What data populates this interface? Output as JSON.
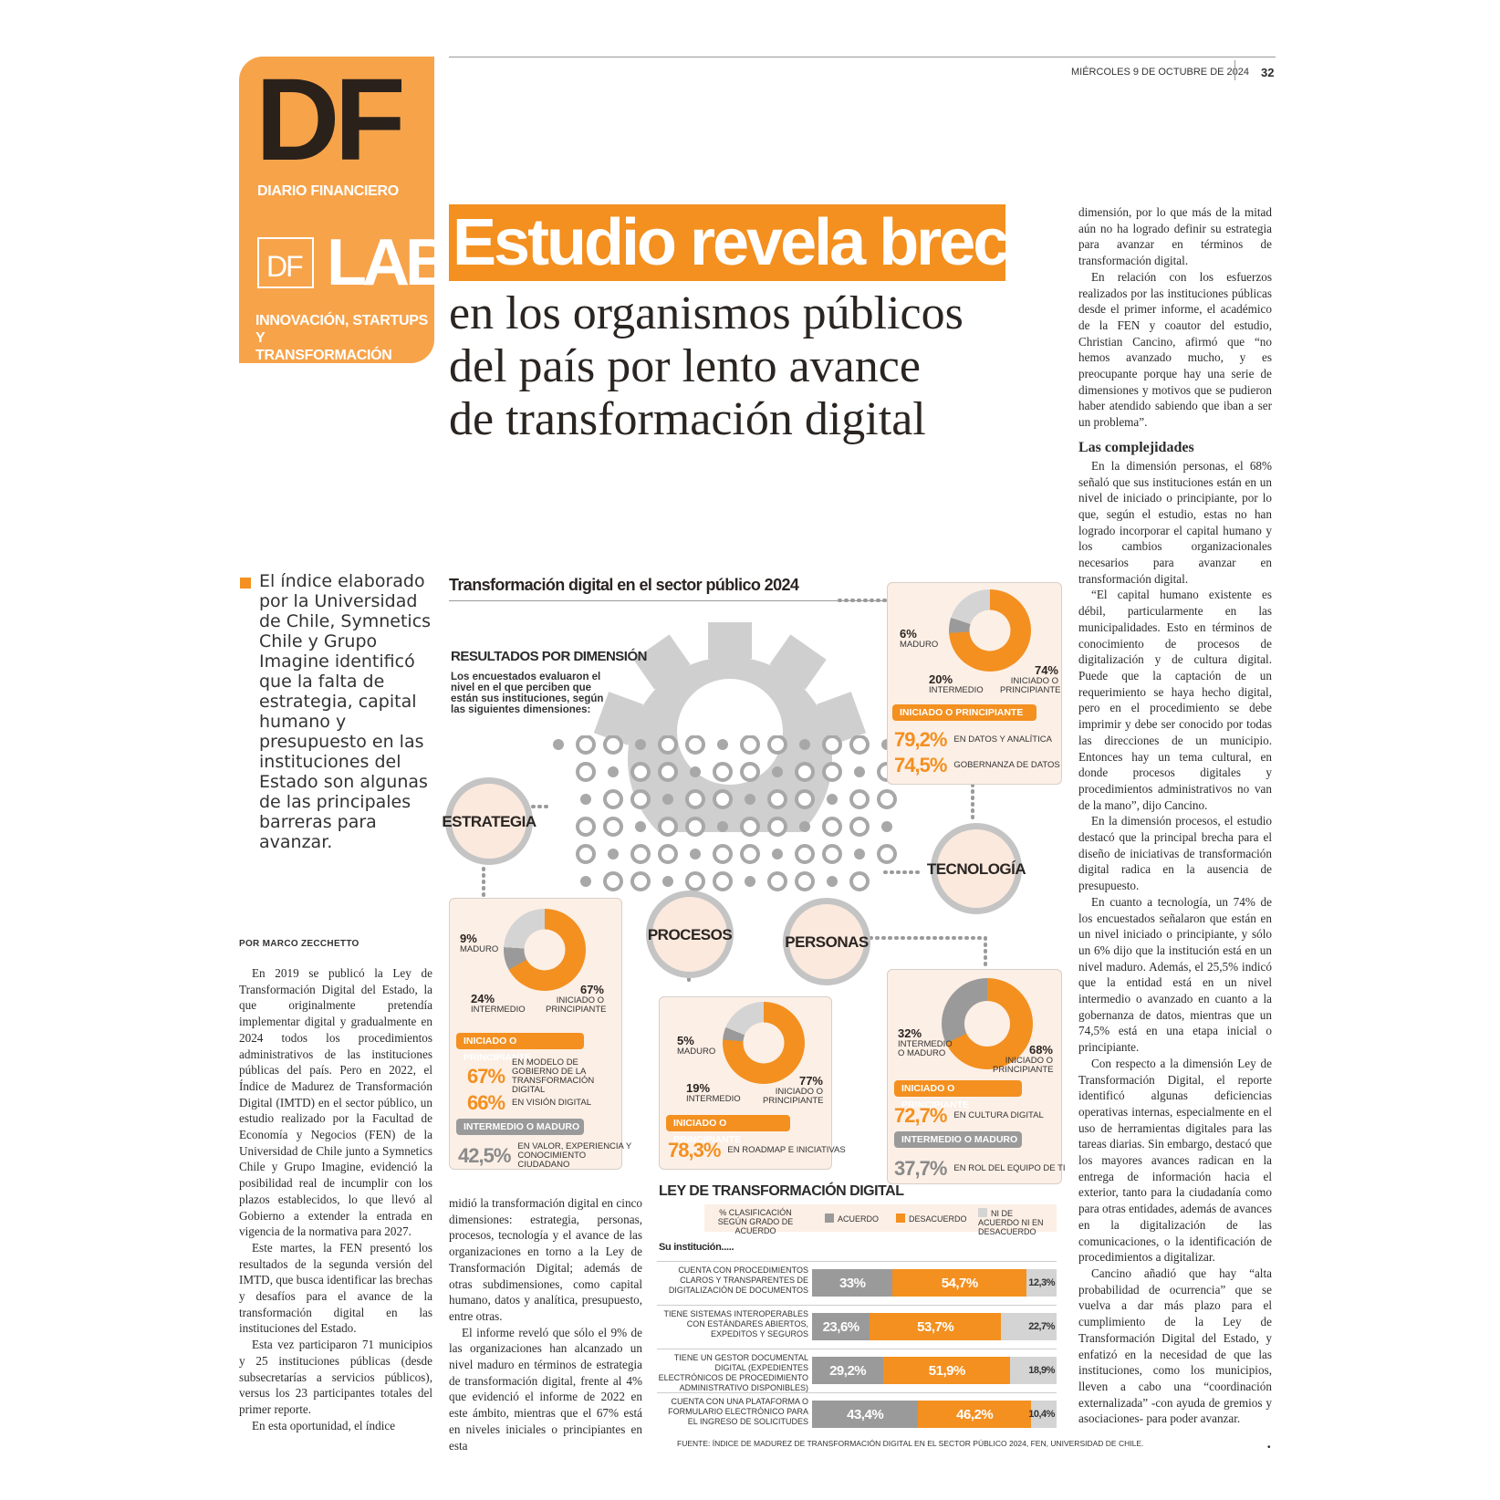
{
  "brand": {
    "logo": "DF",
    "name": "DIARIO FINANCIERO",
    "section_logo_df": "DF",
    "section_logo_lab": "LAB",
    "section_tagline": [
      "INNOVACIÓN, STARTUPS Y",
      "TRANSFORMACIÓN DIGITAL"
    ]
  },
  "page": {
    "date": "MIÉRCOLES 9 DE OCTUBRE DE 2024",
    "number": "32"
  },
  "headline": {
    "highlight": "Estudio revela brecha",
    "lines": [
      "en los organismos públicos",
      "del país por lento avance",
      "de transformación digital"
    ]
  },
  "lead": "El índice elaborado por la Universidad de Chile, Symnetics Chile y Grupo Imagine identificó que la falta de estrategia, capital humano y presupuesto en las instituciones del Estado son algunas de las principales barreras para avanzar.",
  "byline": "POR MARCO ZECCHETTO",
  "body": {
    "col1": [
      "En 2019 se publicó la Ley de Transformación Digital del Estado, la que originalmente pretendía implementar digital y gradualmente en 2024 todos los procedimientos administrativos de las instituciones públicas del país. Pero en 2022, el Índice de Madurez de Transformación Digital (IMTD) en el sector público, un estudio realizado por la Facultad de Economía y Negocios (FEN) de la Universidad de Chile junto a Symnetics Chile y Grupo Imagine, evidenció la posibilidad real de incumplir con los plazos establecidos, lo que llevó al Gobierno a extender la entrada en vigencia de la normativa para 2027.",
      "Este martes, la FEN presentó los resultados de la segunda versión del IMTD, que busca identificar las brechas y desafíos para el avance de la transformación digital en las instituciones del Estado.",
      "Esta vez participaron 71 municipios y 25 instituciones públicas (desde subsecretarías a servicios públicos), versus los 23 participantes totales del primer reporte.",
      "En esta oportunidad, el índice"
    ],
    "col2": [
      "midió la transformación digital en cinco dimensiones: estrategia, personas, procesos, tecnología y el avance de las organizaciones en torno a la Ley de Transformación Digital; además de otras subdimensiones, como capital humano, datos y analítica, presupuesto, entre otras.",
      "El informe reveló que sólo el 9% de las organizaciones han alcanzado un nivel maduro en términos de estrategia de transformación digital, frente al 4% que evidenció el informe de 2022 en este ámbito, mientras que el 67% está en niveles iniciales o principiantes en esta"
    ],
    "col3_a": [
      "dimensión, por lo que más de la mitad aún no ha logrado definir su estrategia para avanzar en términos de transformación digital.",
      "En relación con los esfuerzos realizados por las instituciones públicas desde el primer informe, el académico de la FEN y coautor del estudio, Christian Cancino, afirmó que “no hemos avanzado mucho, y es preocupante porque hay una serie de dimensiones y motivos que se pudieron haber atendido sabiendo que iban a ser un problema”."
    ],
    "col3_heading": "Las complejidades",
    "col3_b": [
      "En la dimensión personas, el 68% señaló que sus instituciones están en un nivel de iniciado o principiante, por lo que, según el estudio, estas no han logrado incorporar el capital humano y los cambios organizacionales necesarios para avanzar en transformación digital.",
      "“El capital humano existente es débil, particularmente en las municipalidades. Esto en términos de conocimiento de procesos de digitalización y de cultura digital. Puede que la captación de un requerimiento se haya hecho digital, pero en el procedimiento se debe imprimir y debe ser conocido por todas las direcciones de un municipio. Entonces hay un tema cultural, en donde procesos digitales y procedimientos administrativos no van de la mano”, dijo Cancino.",
      "En la dimensión procesos, el estudio destacó que la principal brecha para el diseño de iniciativas de transformación digital radica en la ausencia de presupuesto.",
      "En cuanto a tecnología, un 74% de los encuestados señalaron que están en un nivel iniciado o principiante, y sólo un 6% dijo que la institución está en un nivel maduro. Además, el 25,5% indicó que la entidad está en un nivel intermedio o avanzado en cuanto a la gobernanza de datos, mientras que un 74,5% está en una etapa inicial o principiante.",
      "Con respecto a la dimensión Ley de Transformación Digital, el reporte identificó algunas deficiencias operativas internas, especialmente en el uso de herramientas digitales para las tareas diarias. Sin embargo, destacó que los mayores avances radican en la entrega de información hacia el exterior, tanto para la ciudadanía como para otras entidades, además de avances en la digitalización de las comunicaciones, o la identificación de procedimientos a digitalizar.",
      "Cancino añadió que hay “alta probabilidad de ocurrencia” que se vuelva a dar más plazo para el cumplimiento de la Ley de Transformación Digital del Estado, y enfatizó en la necesidad de que las instituciones, como los municipios, lleven a cabo una “coordinación externalizada” -con ayuda de gremios y asociaciones- para poder avanzar."
    ],
    "end_mark": "•"
  },
  "infographic": {
    "title": "Transformación digital en el sector público 2024",
    "results_title": "RESULTADOS POR DIMENSIÓN",
    "results_sub": "Los encuestados evaluaron el nivel en el que perciben que están sus instituciones, según las siguientes dimensiones:",
    "colors": {
      "orange": "#f39020",
      "gray": "#9a9a9a",
      "light_gray": "#d4d4d4",
      "panel": "#fcefe6"
    },
    "dimensions": {
      "estrategia": {
        "label": "ESTRATEGIA",
        "maduro": "9%",
        "maduro_label": "MADURO",
        "intermedio": "24%",
        "intermedio_label": "INTERMEDIO",
        "iniciado": "67%",
        "iniciado_label": "INICIADO O PRINCIPIANTE",
        "pill1": "INICIADO O PRINCIPIANTE",
        "stats1": [
          {
            "value": "67%",
            "text": "EN MODELO DE GOBIERNO DE LA TRANSFORMACIÓN DIGITAL"
          },
          {
            "value": "66%",
            "text": "EN VISIÓN DIGITAL"
          }
        ],
        "pill2": "INTERMEDIO O MADURO",
        "stats2": [
          {
            "value": "42,5%",
            "text": "EN VALOR, EXPERIENCIA Y CONOCIMIENTO CIUDADANO"
          }
        ]
      },
      "procesos": {
        "label": "PROCESOS",
        "maduro": "5%",
        "maduro_label": "MADURO",
        "intermedio": "19%",
        "intermedio_label": "INTERMEDIO",
        "iniciado": "77%",
        "iniciado_label": "INICIADO O PRINCIPIANTE",
        "pill1": "INICIADO O PRINCIPIANTE",
        "stats1": [
          {
            "value": "78,3%",
            "text": "EN ROADMAP E INICIATIVAS"
          }
        ]
      },
      "personas": {
        "label": "PERSONAS",
        "maduro": "32%",
        "maduro_label": "INTERMEDIO O MADURO",
        "iniciado": "68%",
        "iniciado_label": "INICIADO O PRINCIPIANTE",
        "pill1": "INICIADO O PRINCIPIANTE",
        "stats1": [
          {
            "value": "72,7%",
            "text": "EN CULTURA DIGITAL"
          }
        ],
        "pill2": "INTERMEDIO O MADURO",
        "stats2": [
          {
            "value": "37,7%",
            "text": "EN ROL DEL EQUIPO DE TI"
          }
        ]
      },
      "tecnologia": {
        "label": "TECNOLOGÍA",
        "maduro": "6%",
        "maduro_label": "MADURO",
        "intermedio": "20%",
        "intermedio_label": "INTERMEDIO",
        "iniciado": "74%",
        "iniciado_label": "INICIADO O PRINCIPIANTE",
        "pill1": "INICIADO O PRINCIPIANTE",
        "stats1": [
          {
            "value": "79,2%",
            "text": "EN DATOS Y ANALÍTICA"
          },
          {
            "value": "74,5%",
            "text": "GOBERNANZA DE DATOS"
          }
        ]
      }
    },
    "ley": {
      "title": "LEY DE TRANSFORMACIÓN DIGITAL",
      "legend_caption": "% CLASIFICACIÓN SEGÚN GRADO DE ACUERDO",
      "legend": [
        "ACUERDO",
        "DESACUERDO",
        "NI DE ACUERDO NI EN DESACUERDO"
      ],
      "subtitle": "Su institución.....",
      "rows": [
        {
          "label": "CUENTA CON PROCEDIMIENTOS CLAROS Y TRANSPARENTES DE DIGITALIZACIÓN DE DOCUMENTOS",
          "acuerdo": "33%",
          "desacuerdo": "54,7%",
          "ni": "12,3%"
        },
        {
          "label": "TIENE SISTEMAS INTEROPERABLES CON ESTÁNDARES ABIERTOS, EXPEDITOS Y SEGUROS",
          "acuerdo": "23,6%",
          "desacuerdo": "53,7%",
          "ni": "22,7%"
        },
        {
          "label": "TIENE UN GESTOR DOCUMENTAL DIGITAL (EXPEDIENTES ELECTRÓNICOS DE PROCEDIMIENTO ADMINISTRATIVO DISPONIBLES)",
          "acuerdo": "29,2%",
          "desacuerdo": "51,9%",
          "ni": "18,9%"
        },
        {
          "label": "CUENTA CON UNA PLATAFORMA O FORMULARIO ELECTRÓNICO PARA EL INGRESO DE SOLICITUDES",
          "acuerdo": "43,4%",
          "desacuerdo": "46,2%",
          "ni": "10,4%"
        }
      ],
      "values": [
        [
          33,
          54.7,
          12.3
        ],
        [
          23.6,
          53.7,
          22.7
        ],
        [
          29.2,
          51.9,
          18.9
        ],
        [
          43.4,
          46.2,
          10.4
        ]
      ]
    },
    "source": "FUENTE: ÍNDICE DE MADUREZ DE TRANSFORMACIÓN DIGITAL EN EL SECTOR PÚBLICO 2024, FEN, UNIVERSIDAD DE CHILE."
  },
  "chart_data": [
    {
      "type": "pie",
      "title": "ESTRATEGIA",
      "labels": [
        "MADURO",
        "INTERMEDIO",
        "INICIADO O PRINCIPIANTE"
      ],
      "values": [
        9,
        24,
        67
      ]
    },
    {
      "type": "pie",
      "title": "PROCESOS",
      "labels": [
        "MADURO",
        "INTERMEDIO",
        "INICIADO O PRINCIPIANTE"
      ],
      "values": [
        5,
        19,
        77
      ]
    },
    {
      "type": "pie",
      "title": "PERSONAS",
      "labels": [
        "INTERMEDIO O MADURO",
        "INICIADO O PRINCIPIANTE"
      ],
      "values": [
        32,
        68
      ]
    },
    {
      "type": "pie",
      "title": "TECNOLOGÍA",
      "labels": [
        "MADURO",
        "INTERMEDIO",
        "INICIADO O PRINCIPIANTE"
      ],
      "values": [
        6,
        20,
        74
      ]
    },
    {
      "type": "bar",
      "title": "LEY DE TRANSFORMACIÓN DIGITAL",
      "categories": [
        "CUENTA CON PROCEDIMIENTOS CLAROS Y TRANSPARENTES DE DIGITALIZACIÓN DE DOCUMENTOS",
        "TIENE SISTEMAS INTEROPERABLES CON ESTÁNDARES ABIERTOS, EXPEDITOS Y SEGUROS",
        "TIENE UN GESTOR DOCUMENTAL DIGITAL (EXPEDIENTES ELECTRÓNICOS DE PROCEDIMIENTO ADMINISTRATIVO DISPONIBLES)",
        "CUENTA CON UNA PLATAFORMA O FORMULARIO ELECTRÓNICO PARA EL INGRESO DE SOLICITUDES"
      ],
      "series": [
        {
          "name": "ACUERDO",
          "values": [
            33,
            23.6,
            29.2,
            43.4
          ]
        },
        {
          "name": "DESACUERDO",
          "values": [
            54.7,
            53.7,
            51.9,
            46.2
          ]
        },
        {
          "name": "NI DE ACUERDO NI EN DESACUERDO",
          "values": [
            12.3,
            22.7,
            18.9,
            10.4
          ]
        }
      ],
      "stacked": true
    }
  ]
}
